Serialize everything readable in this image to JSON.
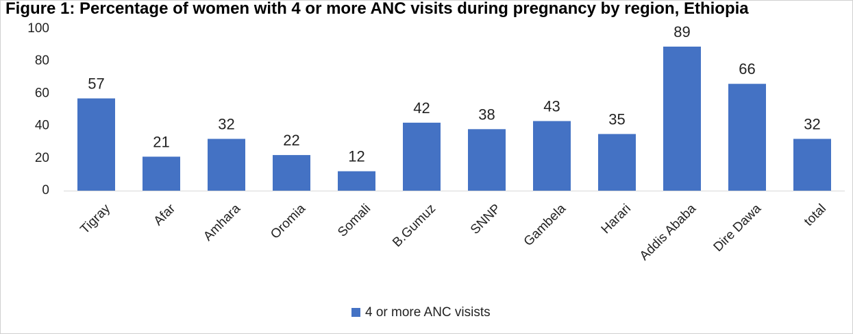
{
  "chart_data": {
    "type": "bar",
    "title": "Figure 1: Percentage of women with 4 or more ANC visits during pregnancy by region, Ethiopia",
    "xlabel": "",
    "ylabel": "",
    "categories": [
      "Tigray",
      "Afar",
      "Amhara",
      "Oromia",
      "Somali",
      "B.Gumuz",
      "SNNP",
      "Gambela",
      "Harari",
      "Addis Ababa",
      "Dire Dawa",
      "total"
    ],
    "series": [
      {
        "name": "4 or more ANC visists",
        "values": [
          57,
          21,
          32,
          22,
          12,
          42,
          38,
          43,
          35,
          89,
          66,
          32
        ],
        "color": "#4472C4"
      }
    ],
    "ylim": [
      0,
      100
    ],
    "yticks": [
      0,
      20,
      40,
      60,
      80,
      100
    ],
    "data_labels": true,
    "grid": false,
    "legend_position": "bottom"
  }
}
